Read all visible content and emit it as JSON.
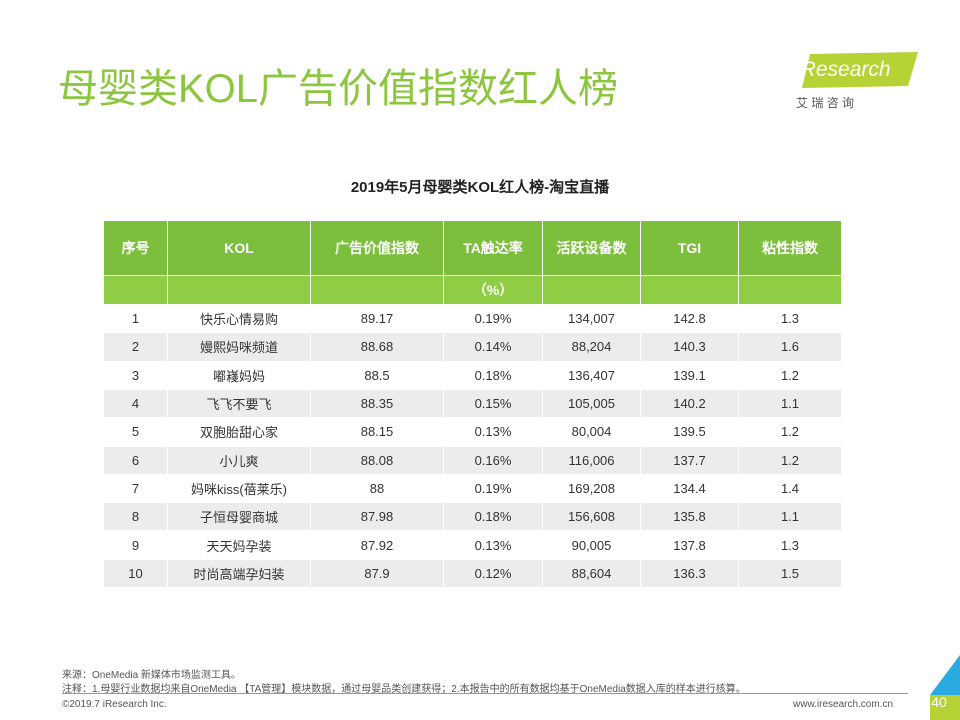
{
  "header": {
    "title": "母婴类KOL广告价值指数红人榜",
    "logo": "iResearch",
    "logo_sub": "艾 瑞 咨 询"
  },
  "table": {
    "title": "2019年5月母婴类KOL红人榜-淘宝直播",
    "columns": [
      "序号",
      "KOL",
      "广告价值指数",
      "TA触达率",
      "活跃设备数",
      "TGI",
      "粘性指数"
    ],
    "unit": "（%）",
    "rows": [
      [
        "1",
        "快乐心情易购",
        "89.17",
        "0.19%",
        "134,007",
        "142.8",
        "1.3"
      ],
      [
        "2",
        "嫚熙妈咪频道",
        "88.68",
        "0.14%",
        "88,204",
        "140.3",
        "1.6"
      ],
      [
        "3",
        "嘟嶘妈妈",
        "88.5",
        "0.18%",
        "136,407",
        "139.1",
        "1.2"
      ],
      [
        "4",
        "飞飞不要飞",
        "88.35",
        "0.15%",
        "105,005",
        "140.2",
        "1.1"
      ],
      [
        "5",
        "双胞胎甜心家",
        "88.15",
        "0.13%",
        "80,004",
        "139.5",
        "1.2"
      ],
      [
        "6",
        "小儿爽",
        "88.08",
        "0.16%",
        "116,006",
        "137.7",
        "1.2"
      ],
      [
        "7",
        "妈咪kiss(蓓莱乐)",
        "88",
        "0.19%",
        "169,208",
        "134.4",
        "1.4"
      ],
      [
        "8",
        "子恒母婴商城",
        "87.98",
        "0.18%",
        "156,608",
        "135.8",
        "1.1"
      ],
      [
        "9",
        "天天妈孕装",
        "87.92",
        "0.13%",
        "90,005",
        "137.8",
        "1.3"
      ],
      [
        "10",
        "时尚高端孕妇装",
        "87.9",
        "0.12%",
        "88,604",
        "136.3",
        "1.5"
      ]
    ]
  },
  "footer": {
    "source": "来源：OneMedia 新媒体市场监测工具。",
    "note": "注释：1.母婴行业数据均来自OneMedia 【TA管理】模块数据，通过母婴品类创建获得；2.本报告中的所有数据均基于OneMedia数据入库的样本进行核算。",
    "copyright": "©2019.7 iResearch Inc.",
    "website": "www.iresearch.com.cn",
    "page": "40"
  }
}
